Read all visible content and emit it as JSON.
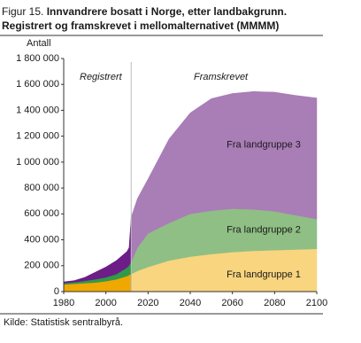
{
  "chart_data": {
    "type": "stacked_area",
    "title_prefix": "Figur 15.",
    "title": "Innvandrere bosatt i Norge, etter landbakgrunn.",
    "subtitle": "Registrert og framskrevet i mellomalternativet (MMMM)",
    "y_label": "Antall",
    "annotations": [
      "Registrert",
      "Framskrevet"
    ],
    "source": "Kilde: Statistisk sentralbyrå.",
    "divider_x": 2012,
    "x": [
      1980,
      1985,
      1990,
      1995,
      2000,
      2005,
      2010,
      2011,
      2012,
      2015,
      2020,
      2030,
      2040,
      2050,
      2060,
      2070,
      2080,
      2090,
      2100
    ],
    "series": [
      {
        "name": "Fra landgruppe 1",
        "color": "#f0a800",
        "color_projected": "#f8d57e",
        "values": [
          55000,
          60000,
          65000,
          70000,
          80000,
          95000,
          120000,
          128000,
          135000,
          160000,
          190000,
          240000,
          270000,
          290000,
          305000,
          315000,
          320000,
          325000,
          330000
        ]
      },
      {
        "name": "Fra landgruppe 2",
        "color": "#2f9a4a",
        "color_projected": "#8fbf84",
        "values": [
          10000,
          12000,
          18000,
          25000,
          30000,
          40000,
          65000,
          75000,
          95000,
          180000,
          260000,
          290000,
          330000,
          335000,
          335000,
          320000,
          300000,
          265000,
          230000
        ]
      },
      {
        "name": "Fra landgruppe 3",
        "color": "#6c1d88",
        "color_projected": "#a97db6",
        "values": [
          10000,
          13000,
          27000,
          55000,
          80000,
          105000,
          125000,
          137000,
          345000,
          380000,
          420000,
          650000,
          780000,
          865000,
          890000,
          910000,
          920000,
          925000,
          935000
        ]
      }
    ],
    "xlim": [
      1980,
      2100
    ],
    "xticks": [
      1980,
      2000,
      2020,
      2040,
      2060,
      2080,
      2100
    ],
    "ylim": [
      0,
      1800000
    ],
    "yticks": [
      0,
      {
        "value": 200000,
        "label": "200 000"
      },
      {
        "value": 400000,
        "label": "400 000"
      },
      {
        "value": 600000,
        "label": "600 000"
      },
      {
        "value": 800000,
        "label": "800 000"
      },
      {
        "value": 1000000,
        "label": "1 000 000"
      },
      {
        "value": 1200000,
        "label": "1 200 000"
      },
      {
        "value": 1400000,
        "label": "1 400 000"
      },
      {
        "value": 1600000,
        "label": "1 600 000"
      },
      {
        "value": 1800000,
        "label": "1 800 000"
      }
    ],
    "grid": false
  }
}
